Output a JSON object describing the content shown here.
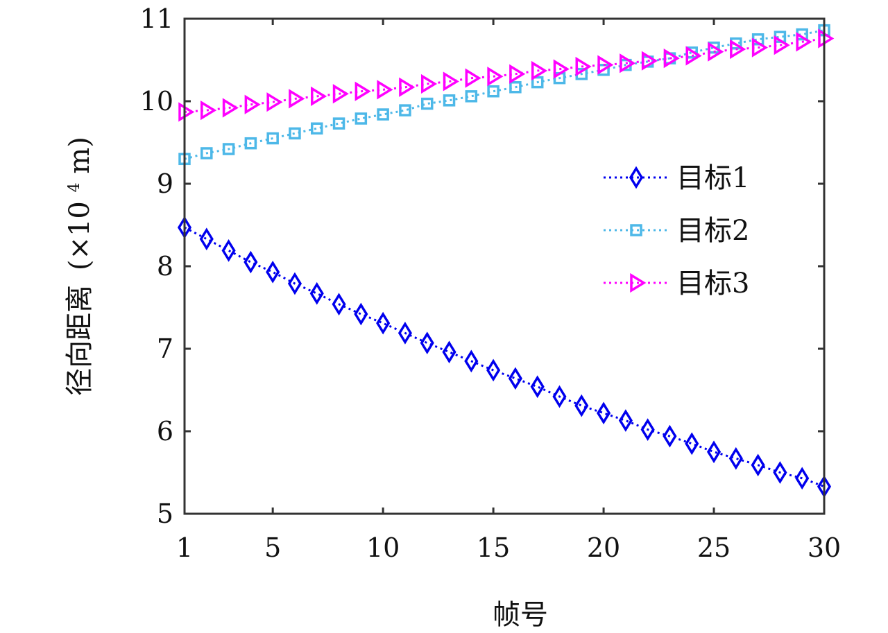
{
  "chart_data": {
    "type": "line",
    "title": "",
    "xlabel": "帧号",
    "ylabel_main": "径向距离",
    "ylabel_unit_prefix": "(×10",
    "ylabel_unit_exp": "4",
    "ylabel_unit_suffix": " m)",
    "xlim": [
      1,
      30
    ],
    "ylim": [
      5,
      11
    ],
    "xticks": [
      1,
      5,
      10,
      15,
      20,
      25,
      30
    ],
    "xtick_labels": [
      "1",
      "5",
      "10",
      "15",
      "20",
      "25",
      "30"
    ],
    "yticks": [
      5,
      6,
      7,
      8,
      9,
      10,
      11
    ],
    "ytick_labels": [
      "5",
      "6",
      "7",
      "8",
      "9",
      "10",
      "11"
    ],
    "grid": false,
    "legend_position": "right",
    "x": [
      1,
      2,
      3,
      4,
      5,
      6,
      7,
      8,
      9,
      10,
      11,
      12,
      13,
      14,
      15,
      16,
      17,
      18,
      19,
      20,
      21,
      22,
      23,
      24,
      25,
      26,
      27,
      28,
      29,
      30
    ],
    "series": [
      {
        "name": "目标1",
        "color": "#0000ee",
        "marker": "diamond",
        "linestyle": "dotted",
        "values": [
          8.47,
          8.33,
          8.19,
          8.05,
          7.93,
          7.79,
          7.67,
          7.54,
          7.42,
          7.31,
          7.19,
          7.07,
          6.96,
          6.85,
          6.74,
          6.64,
          6.54,
          6.42,
          6.31,
          6.22,
          6.13,
          6.02,
          5.94,
          5.85,
          5.75,
          5.67,
          5.59,
          5.5,
          5.43,
          5.33
        ]
      },
      {
        "name": "目标2",
        "color": "#4db8e8",
        "marker": "square",
        "linestyle": "dotted",
        "values": [
          9.3,
          9.37,
          9.42,
          9.49,
          9.55,
          9.61,
          9.67,
          9.73,
          9.79,
          9.84,
          9.89,
          9.97,
          10.01,
          10.06,
          10.12,
          10.17,
          10.23,
          10.28,
          10.33,
          10.38,
          10.44,
          10.48,
          10.52,
          10.59,
          10.65,
          10.7,
          10.75,
          10.78,
          10.81,
          10.86
        ]
      },
      {
        "name": "目标3",
        "color": "#ff00ff",
        "marker": "triangle-right",
        "linestyle": "dotted",
        "values": [
          9.87,
          9.89,
          9.92,
          9.96,
          9.99,
          10.03,
          10.06,
          10.09,
          10.12,
          10.14,
          10.17,
          10.21,
          10.24,
          10.28,
          10.3,
          10.33,
          10.37,
          10.39,
          10.42,
          10.44,
          10.46,
          10.49,
          10.52,
          10.55,
          10.6,
          10.63,
          10.65,
          10.68,
          10.72,
          10.76
        ]
      }
    ]
  }
}
